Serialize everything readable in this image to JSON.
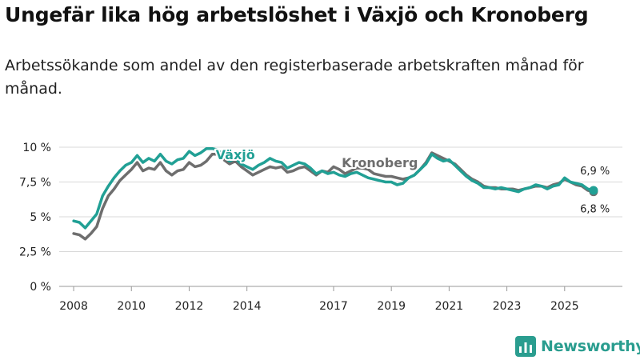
{
  "title": "Ungefär lika hög arbetslöshet i Växjö och Kronoberg",
  "subtitle": "Arbetssökande som andel av den registerbaserade arbetskraften månad för månad.",
  "brand": "Newsworthy",
  "chart_data": {
    "type": "line",
    "y_ticks": [
      {
        "value": 0,
        "label": "0 %"
      },
      {
        "value": 2.5,
        "label": "2,5 %"
      },
      {
        "value": 5,
        "label": "5 %"
      },
      {
        "value": 7.5,
        "label": "7,5 %"
      },
      {
        "value": 10,
        "label": "10 %"
      }
    ],
    "x_ticks": [
      {
        "value": 2008,
        "label": "2008"
      },
      {
        "value": 2010,
        "label": "2010"
      },
      {
        "value": 2012,
        "label": "2012"
      },
      {
        "value": 2014,
        "label": "2014"
      },
      {
        "value": 2017,
        "label": "2017"
      },
      {
        "value": 2019,
        "label": "2019"
      },
      {
        "value": 2021,
        "label": "2021"
      },
      {
        "value": 2023,
        "label": "2023"
      },
      {
        "value": 2025,
        "label": "2025"
      }
    ],
    "xlim": [
      2007.5,
      2027.0
    ],
    "ylim": [
      0,
      10
    ],
    "grid": true,
    "series": [
      {
        "name": "Kronoberg",
        "color": "#6e6e6e",
        "end_label": "6,8 %",
        "points": [
          [
            2008.0,
            3.8
          ],
          [
            2008.2,
            3.7
          ],
          [
            2008.4,
            3.4
          ],
          [
            2008.6,
            3.8
          ],
          [
            2008.8,
            4.3
          ],
          [
            2009.0,
            5.6
          ],
          [
            2009.2,
            6.5
          ],
          [
            2009.4,
            7.0
          ],
          [
            2009.6,
            7.6
          ],
          [
            2009.8,
            8.0
          ],
          [
            2010.0,
            8.4
          ],
          [
            2010.2,
            8.9
          ],
          [
            2010.4,
            8.3
          ],
          [
            2010.6,
            8.5
          ],
          [
            2010.8,
            8.4
          ],
          [
            2011.0,
            8.9
          ],
          [
            2011.2,
            8.3
          ],
          [
            2011.4,
            8.0
          ],
          [
            2011.6,
            8.3
          ],
          [
            2011.8,
            8.4
          ],
          [
            2012.0,
            8.9
          ],
          [
            2012.2,
            8.6
          ],
          [
            2012.4,
            8.7
          ],
          [
            2012.6,
            9.0
          ],
          [
            2012.8,
            9.5
          ],
          [
            2013.0,
            9.5
          ],
          [
            2013.2,
            9.1
          ],
          [
            2013.4,
            8.8
          ],
          [
            2013.6,
            9.0
          ],
          [
            2013.8,
            8.6
          ],
          [
            2014.0,
            8.3
          ],
          [
            2014.2,
            8.0
          ],
          [
            2014.4,
            8.2
          ],
          [
            2014.6,
            8.4
          ],
          [
            2014.8,
            8.6
          ],
          [
            2015.0,
            8.5
          ],
          [
            2015.2,
            8.6
          ],
          [
            2015.4,
            8.2
          ],
          [
            2015.6,
            8.3
          ],
          [
            2015.8,
            8.5
          ],
          [
            2016.0,
            8.6
          ],
          [
            2016.2,
            8.3
          ],
          [
            2016.4,
            8.0
          ],
          [
            2016.6,
            8.3
          ],
          [
            2016.8,
            8.2
          ],
          [
            2017.0,
            8.6
          ],
          [
            2017.2,
            8.4
          ],
          [
            2017.4,
            8.1
          ],
          [
            2017.6,
            8.3
          ],
          [
            2017.8,
            8.5
          ],
          [
            2018.0,
            8.5
          ],
          [
            2018.2,
            8.4
          ],
          [
            2018.4,
            8.1
          ],
          [
            2018.6,
            8.0
          ],
          [
            2018.8,
            7.9
          ],
          [
            2019.0,
            7.9
          ],
          [
            2019.2,
            7.8
          ],
          [
            2019.4,
            7.7
          ],
          [
            2019.6,
            7.8
          ],
          [
            2019.8,
            8.0
          ],
          [
            2020.0,
            8.4
          ],
          [
            2020.2,
            8.9
          ],
          [
            2020.4,
            9.6
          ],
          [
            2020.6,
            9.4
          ],
          [
            2020.8,
            9.2
          ],
          [
            2021.0,
            9.0
          ],
          [
            2021.2,
            8.8
          ],
          [
            2021.4,
            8.4
          ],
          [
            2021.6,
            8.0
          ],
          [
            2021.8,
            7.7
          ],
          [
            2022.0,
            7.5
          ],
          [
            2022.2,
            7.2
          ],
          [
            2022.4,
            7.1
          ],
          [
            2022.6,
            7.1
          ],
          [
            2022.8,
            7.0
          ],
          [
            2023.0,
            7.0
          ],
          [
            2023.2,
            7.0
          ],
          [
            2023.4,
            6.9
          ],
          [
            2023.6,
            7.0
          ],
          [
            2023.8,
            7.1
          ],
          [
            2024.0,
            7.2
          ],
          [
            2024.2,
            7.2
          ],
          [
            2024.4,
            7.1
          ],
          [
            2024.6,
            7.3
          ],
          [
            2024.8,
            7.4
          ],
          [
            2025.0,
            7.7
          ],
          [
            2025.2,
            7.5
          ],
          [
            2025.4,
            7.3
          ],
          [
            2025.6,
            7.2
          ],
          [
            2025.8,
            6.9
          ],
          [
            2026.0,
            6.8
          ]
        ]
      },
      {
        "name": "Växjö",
        "color": "#21a095",
        "end_label": "6,9 %",
        "points": [
          [
            2008.0,
            4.7
          ],
          [
            2008.2,
            4.6
          ],
          [
            2008.4,
            4.2
          ],
          [
            2008.6,
            4.7
          ],
          [
            2008.8,
            5.2
          ],
          [
            2009.0,
            6.5
          ],
          [
            2009.2,
            7.2
          ],
          [
            2009.4,
            7.8
          ],
          [
            2009.6,
            8.3
          ],
          [
            2009.8,
            8.7
          ],
          [
            2010.0,
            8.9
          ],
          [
            2010.2,
            9.4
          ],
          [
            2010.4,
            8.9
          ],
          [
            2010.6,
            9.2
          ],
          [
            2010.8,
            9.0
          ],
          [
            2011.0,
            9.5
          ],
          [
            2011.2,
            9.0
          ],
          [
            2011.4,
            8.8
          ],
          [
            2011.6,
            9.1
          ],
          [
            2011.8,
            9.2
          ],
          [
            2012.0,
            9.7
          ],
          [
            2012.2,
            9.4
          ],
          [
            2012.4,
            9.6
          ],
          [
            2012.6,
            9.9
          ],
          [
            2012.8,
            9.9
          ],
          [
            2013.0,
            9.8
          ],
          [
            2013.2,
            9.3
          ],
          [
            2013.4,
            9.0
          ],
          [
            2013.6,
            9.2
          ],
          [
            2013.8,
            8.8
          ],
          [
            2014.0,
            8.6
          ],
          [
            2014.2,
            8.4
          ],
          [
            2014.4,
            8.7
          ],
          [
            2014.6,
            8.9
          ],
          [
            2014.8,
            9.2
          ],
          [
            2015.0,
            9.0
          ],
          [
            2015.2,
            8.9
          ],
          [
            2015.4,
            8.5
          ],
          [
            2015.6,
            8.7
          ],
          [
            2015.8,
            8.9
          ],
          [
            2016.0,
            8.8
          ],
          [
            2016.2,
            8.5
          ],
          [
            2016.4,
            8.1
          ],
          [
            2016.6,
            8.3
          ],
          [
            2016.8,
            8.1
          ],
          [
            2017.0,
            8.2
          ],
          [
            2017.2,
            8.0
          ],
          [
            2017.4,
            7.9
          ],
          [
            2017.6,
            8.1
          ],
          [
            2017.8,
            8.2
          ],
          [
            2018.0,
            8.0
          ],
          [
            2018.2,
            7.8
          ],
          [
            2018.4,
            7.7
          ],
          [
            2018.6,
            7.6
          ],
          [
            2018.8,
            7.5
          ],
          [
            2019.0,
            7.5
          ],
          [
            2019.2,
            7.3
          ],
          [
            2019.4,
            7.4
          ],
          [
            2019.6,
            7.8
          ],
          [
            2019.8,
            8.0
          ],
          [
            2020.0,
            8.4
          ],
          [
            2020.2,
            8.8
          ],
          [
            2020.4,
            9.5
          ],
          [
            2020.6,
            9.2
          ],
          [
            2020.8,
            9.0
          ],
          [
            2021.0,
            9.1
          ],
          [
            2021.2,
            8.7
          ],
          [
            2021.4,
            8.3
          ],
          [
            2021.6,
            7.9
          ],
          [
            2021.8,
            7.6
          ],
          [
            2022.0,
            7.4
          ],
          [
            2022.2,
            7.1
          ],
          [
            2022.4,
            7.1
          ],
          [
            2022.6,
            7.0
          ],
          [
            2022.8,
            7.1
          ],
          [
            2023.0,
            7.0
          ],
          [
            2023.2,
            6.9
          ],
          [
            2023.4,
            6.8
          ],
          [
            2023.6,
            7.0
          ],
          [
            2023.8,
            7.1
          ],
          [
            2024.0,
            7.3
          ],
          [
            2024.2,
            7.2
          ],
          [
            2024.4,
            7.0
          ],
          [
            2024.6,
            7.2
          ],
          [
            2024.8,
            7.3
          ],
          [
            2025.0,
            7.8
          ],
          [
            2025.2,
            7.5
          ],
          [
            2025.4,
            7.4
          ],
          [
            2025.6,
            7.3
          ],
          [
            2025.8,
            7.0
          ],
          [
            2026.0,
            6.9
          ]
        ]
      }
    ]
  }
}
